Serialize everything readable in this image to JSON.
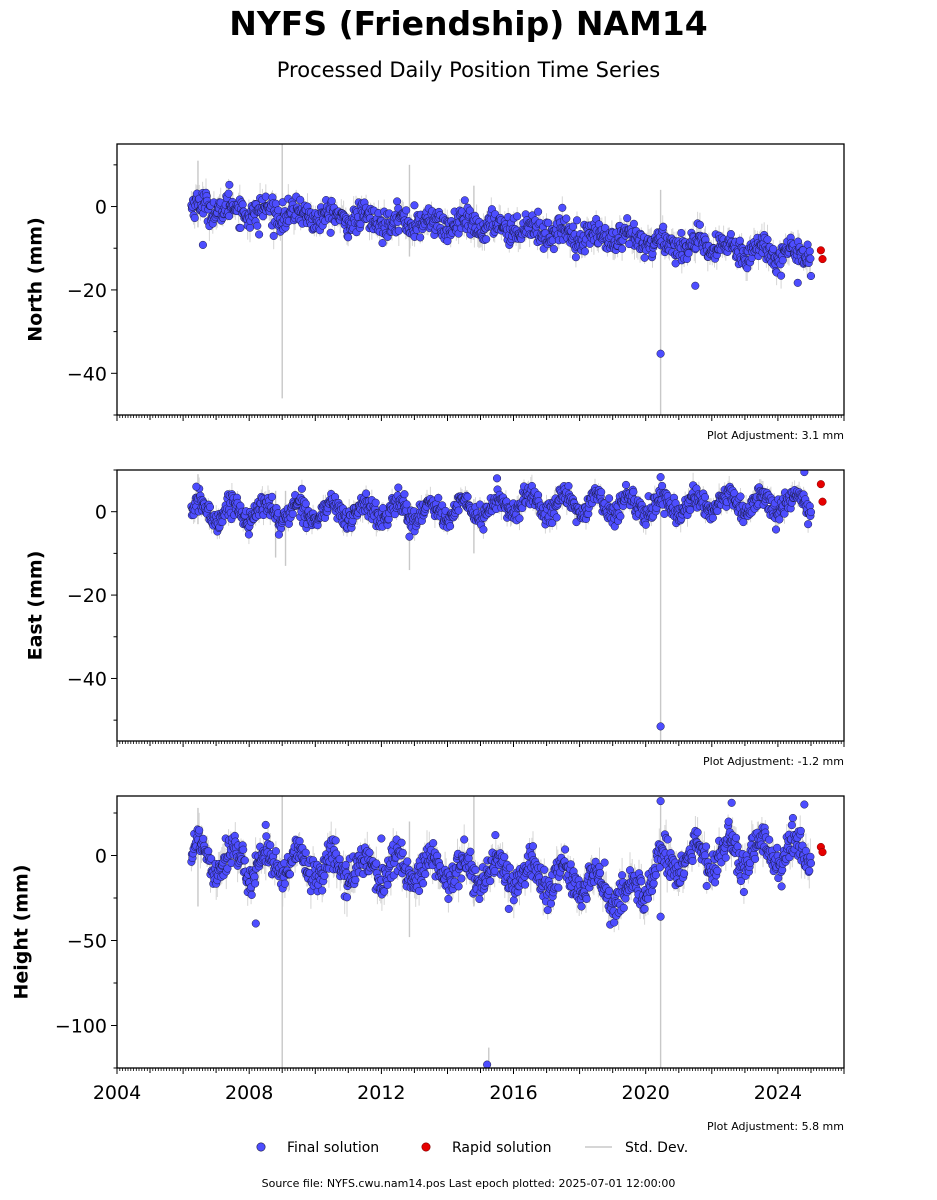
{
  "header": {
    "title": "NYFS (Friendship) NAM14",
    "subtitle": "Processed Daily Position Time Series"
  },
  "footer": {
    "source": "Source file: NYFS.cwu.nam14.pos  Last epoch plotted: 2025-07-01 12:00:00"
  },
  "legend": {
    "placement": "bottom-center",
    "final": "Final solution",
    "rapid": "Rapid solution",
    "std": "Std. Dev."
  },
  "colors": {
    "final": "#4d4dff",
    "final_edge": "#1a1a40",
    "rapid": "#e60000",
    "std": "#c8c8c8",
    "axis": "#000000"
  },
  "chart_data": [
    {
      "type": "scatter",
      "ylabel": "North (mm)",
      "adjustment": "Plot Adjustment: 3.1 mm",
      "xlim": [
        2004.0,
        2026.0
      ],
      "ylim": [
        -50,
        15
      ],
      "yticks": [
        0,
        -20,
        -40
      ],
      "series": [
        {
          "name": "Final solution",
          "start": 2006.25,
          "end": 2025.0,
          "trend": [
            [
              2006.25,
              0.0
            ],
            [
              2012,
              -3.5
            ],
            [
              2016,
              -5.0
            ],
            [
              2020,
              -8.5
            ],
            [
              2025,
              -11.5
            ]
          ],
          "seasonal_amp": 1.2,
          "scatter": 1.6,
          "outliers": [
            [
              2006.6,
              -9.2
            ],
            [
              2007.4,
              5.2
            ],
            [
              2008.3,
              -6.7
            ],
            [
              2013.0,
              0.3
            ],
            [
              2014.0,
              -8.3
            ],
            [
              2019.5,
              -9.0
            ],
            [
              2020.45,
              -35.3
            ],
            [
              2021.5,
              -19.0
            ],
            [
              2024.6,
              -18.3
            ]
          ]
        },
        {
          "name": "Rapid solution",
          "points": [
            [
              2025.3,
              -10.5
            ],
            [
              2025.35,
              -12.6
            ]
          ]
        }
      ],
      "std_bars": [
        [
          2006.45,
          -5,
          11
        ],
        [
          2009.0,
          -46,
          15
        ],
        [
          2012.85,
          -12,
          10
        ],
        [
          2014.8,
          -8,
          5
        ],
        [
          2020.45,
          -50,
          4
        ]
      ]
    },
    {
      "type": "scatter",
      "ylabel": "East (mm)",
      "adjustment": "Plot Adjustment: -1.2 mm",
      "xlim": [
        2004.0,
        2026.0
      ],
      "ylim": [
        -55,
        10
      ],
      "yticks": [
        0,
        -20,
        -40
      ],
      "series": [
        {
          "name": "Final solution",
          "start": 2006.25,
          "end": 2025.0,
          "trend": [
            [
              2006.25,
              0.0
            ],
            [
              2012,
              0.0
            ],
            [
              2015.5,
              0.5
            ],
            [
              2016,
              2.0
            ],
            [
              2020,
              1.5
            ],
            [
              2025,
              2.0
            ]
          ],
          "seasonal_amp": 2.2,
          "scatter": 1.3,
          "outliers": [
            [
              2006.4,
              6.0
            ],
            [
              2008.9,
              -5.5
            ],
            [
              2012.7,
              4.2
            ],
            [
              2012.85,
              -6.0
            ],
            [
              2015.5,
              8.0
            ],
            [
              2020.45,
              8.3
            ],
            [
              2020.45,
              -51.5
            ],
            [
              2024.8,
              9.5
            ]
          ]
        },
        {
          "name": "Rapid solution",
          "points": [
            [
              2025.3,
              6.6
            ],
            [
              2025.35,
              2.4
            ]
          ]
        }
      ],
      "std_bars": [
        [
          2006.45,
          -3,
          9
        ],
        [
          2008.8,
          -11,
          5
        ],
        [
          2009.1,
          -13,
          5
        ],
        [
          2012.85,
          -14,
          2
        ],
        [
          2014.8,
          -10,
          3
        ],
        [
          2020.45,
          -55,
          9
        ]
      ]
    },
    {
      "type": "scatter",
      "ylabel": "Height (mm)",
      "adjustment": "Plot Adjustment: 5.8 mm",
      "xlim": [
        2004.0,
        2026.0
      ],
      "ylim": [
        -125,
        35
      ],
      "yticks": [
        0,
        -50,
        -100
      ],
      "xticks": [
        2004,
        2008,
        2012,
        2016,
        2020,
        2024
      ],
      "series": [
        {
          "name": "Final solution",
          "start": 2006.25,
          "end": 2025.0,
          "trend": [
            [
              2006.25,
              2.0
            ],
            [
              2008,
              -5.0
            ],
            [
              2012,
              -8.0
            ],
            [
              2016,
              -10.0
            ],
            [
              2018,
              -15.0
            ],
            [
              2019.5,
              -25.0
            ],
            [
              2020.5,
              -5.0
            ],
            [
              2022,
              0.0
            ],
            [
              2025,
              2.0
            ]
          ],
          "seasonal_amp": 8.0,
          "scatter": 5.0,
          "outliers": [
            [
              2008.2,
              -40.0
            ],
            [
              2008.5,
              18.0
            ],
            [
              2012.0,
              10.0
            ],
            [
              2015.2,
              -123.0
            ],
            [
              2015.45,
              12.0
            ],
            [
              2020.45,
              32.0
            ],
            [
              2020.45,
              -36.0
            ],
            [
              2022.6,
              31.0
            ],
            [
              2024.8,
              30.0
            ]
          ]
        },
        {
          "name": "Rapid solution",
          "points": [
            [
              2025.3,
              5.0
            ],
            [
              2025.35,
              2.0
            ]
          ]
        }
      ],
      "std_bars": [
        [
          2006.45,
          -30,
          28
        ],
        [
          2009.0,
          -125,
          35
        ],
        [
          2012.85,
          -48,
          20
        ],
        [
          2014.8,
          -30,
          35
        ],
        [
          2015.25,
          -125,
          -113
        ],
        [
          2020.45,
          -125,
          30
        ]
      ]
    }
  ]
}
